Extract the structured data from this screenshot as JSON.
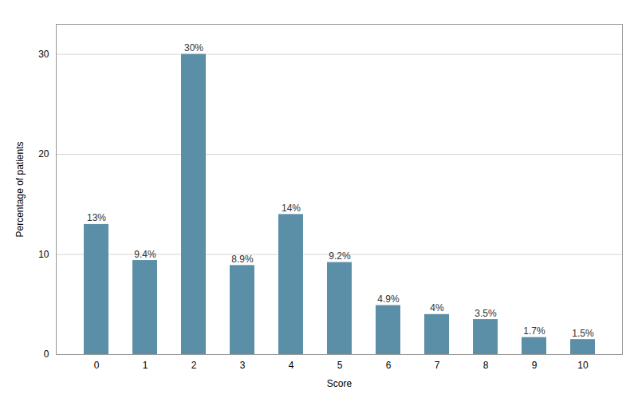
{
  "chart_data": {
    "type": "bar",
    "categories": [
      "0",
      "1",
      "2",
      "3",
      "4",
      "5",
      "6",
      "7",
      "8",
      "9",
      "10"
    ],
    "values": [
      13,
      9.4,
      30,
      8.9,
      14,
      9.2,
      4.9,
      4,
      3.5,
      1.7,
      1.5
    ],
    "value_labels": [
      "13%",
      "9.4%",
      "30%",
      "8.9%",
      "14%",
      "9.2%",
      "4.9%",
      "4%",
      "3.5%",
      "1.7%",
      "1.5%"
    ],
    "data_labels": true,
    "color": "#5b8fa8",
    "xlabel": "Score",
    "ylabel": "Percentage of patients",
    "ylim": [
      0,
      33
    ],
    "yticks": [
      0,
      10,
      20,
      30
    ],
    "grid": true
  }
}
